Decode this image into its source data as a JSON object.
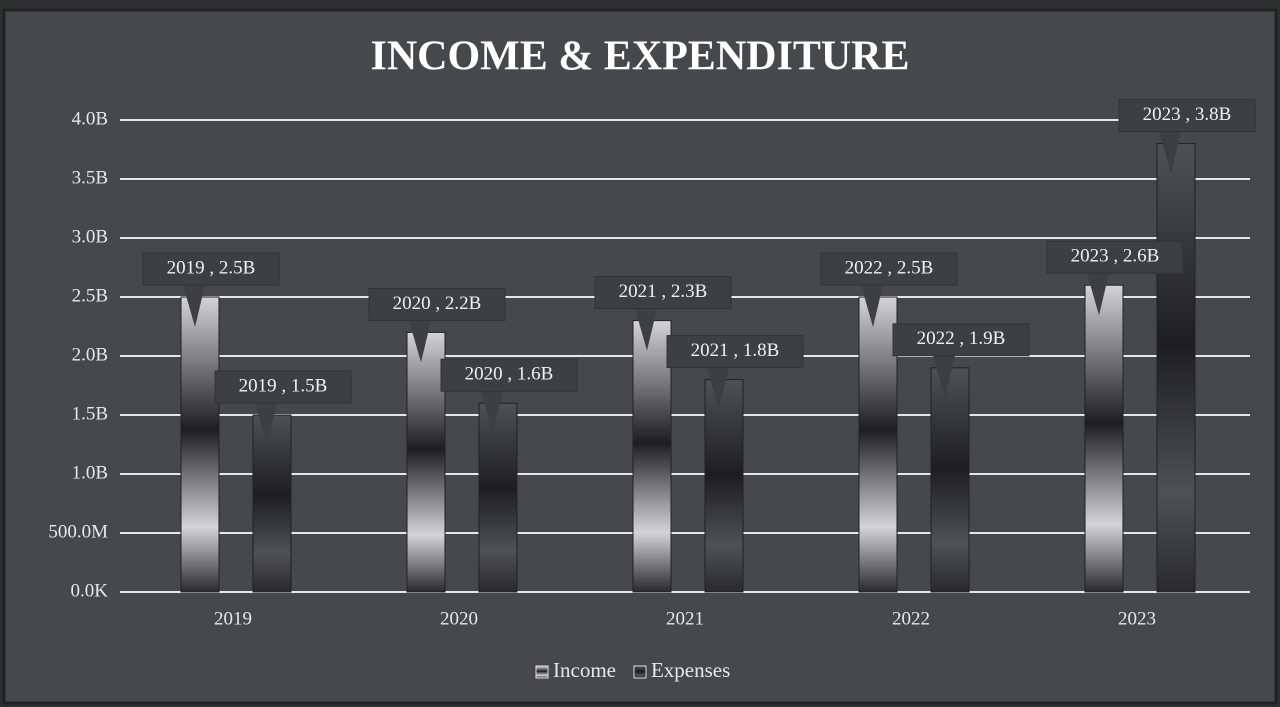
{
  "chart_data": {
    "type": "bar",
    "title": "INCOME & EXPENDITURE",
    "categories": [
      "2019",
      "2020",
      "2021",
      "2022",
      "2023"
    ],
    "series": [
      {
        "name": "Income",
        "color": "#d4d4d6",
        "values": [
          2500000000,
          2200000000,
          2300000000,
          2500000000,
          2600000000
        ],
        "value_labels": [
          "2019 , 2.5B",
          "2020 , 2.2B",
          "2021 , 2.3B",
          "2022 , 2.5B",
          "2023 , 2.6B"
        ]
      },
      {
        "name": "Expenses",
        "color": "#505154",
        "values": [
          1500000000,
          1600000000,
          1800000000,
          1900000000,
          3800000000
        ],
        "value_labels": [
          "2019 , 1.5B",
          "2020 , 1.6B",
          "2021 , 1.8B",
          "2022 , 1.9B",
          "2023 , 3.8B"
        ]
      }
    ],
    "ylim": [
      0,
      4000000000
    ],
    "yticks": [
      {
        "value": 0,
        "label": "0.0K"
      },
      {
        "value": 500000000,
        "label": "500.0M"
      },
      {
        "value": 1000000000,
        "label": "1.0B"
      },
      {
        "value": 1500000000,
        "label": "1.5B"
      },
      {
        "value": 2000000000,
        "label": "2.0B"
      },
      {
        "value": 2500000000,
        "label": "2.5B"
      },
      {
        "value": 3000000000,
        "label": "3.0B"
      },
      {
        "value": 3500000000,
        "label": "3.5B"
      },
      {
        "value": 4000000000,
        "label": "4.0B"
      }
    ],
    "grid": true,
    "legend": "bottom"
  }
}
